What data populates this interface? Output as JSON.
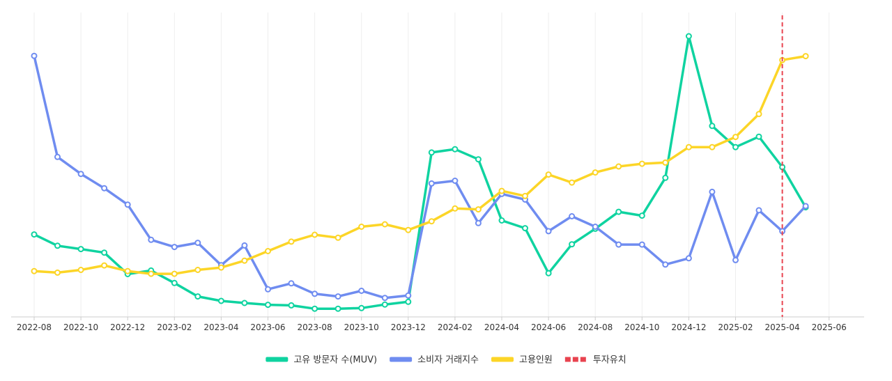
{
  "chart_data": {
    "type": "line",
    "title": "",
    "xlabel": "",
    "ylabel": "",
    "x_tick_labels": [
      "2022-08",
      "2022-10",
      "2022-12",
      "2023-02",
      "2023-04",
      "2023-06",
      "2023-08",
      "2023-10",
      "2023-12",
      "2024-02",
      "2024-04",
      "2024-06",
      "2024-08",
      "2024-10",
      "2024-12",
      "2025-02",
      "2025-04",
      "2025-06"
    ],
    "x_months": [
      "2022-08",
      "2022-09",
      "2022-10",
      "2022-11",
      "2022-12",
      "2023-01",
      "2023-02",
      "2023-03",
      "2023-04",
      "2023-05",
      "2023-06",
      "2023-07",
      "2023-08",
      "2023-09",
      "2023-10",
      "2023-11",
      "2023-12",
      "2024-01",
      "2024-02",
      "2024-03",
      "2024-04",
      "2024-05",
      "2024-06",
      "2024-07",
      "2024-08",
      "2024-09",
      "2024-10",
      "2024-11",
      "2024-12",
      "2025-01",
      "2025-02",
      "2025-03",
      "2025-04",
      "2025-05"
    ],
    "ylim": [
      0,
      100
    ],
    "y_axis_labels_shown": false,
    "grid": "vertical",
    "legend_position": "bottom",
    "series": [
      {
        "name": "고유 방문자 수(MUV)",
        "color": "#0fd3a0",
        "values": [
          26.5,
          22.7,
          21.6,
          20.4,
          13.2,
          14.4,
          10.2,
          5.7,
          4.2,
          3.5,
          2.9,
          2.7,
          1.6,
          1.6,
          1.8,
          3.0,
          3.9,
          54.0,
          55.1,
          51.7,
          31.2,
          28.6,
          13.5,
          23.2,
          28.4,
          34.1,
          32.8,
          45.5,
          93.0,
          62.9,
          55.8,
          59.3,
          49.1,
          35.6
        ]
      },
      {
        "name": "소비자 거래지수",
        "color": "#6f8cf0",
        "values": [
          86.4,
          52.5,
          46.8,
          42.0,
          36.5,
          24.7,
          22.3,
          23.7,
          16.2,
          22.8,
          8.1,
          10.1,
          6.6,
          5.7,
          7.6,
          5.2,
          6.0,
          43.6,
          44.5,
          30.3,
          40.1,
          38.2,
          27.6,
          32.6,
          29.1,
          23.1,
          23.1,
          16.4,
          18.5,
          40.8,
          17.9,
          34.6,
          27.6,
          36.0
        ]
      },
      {
        "name": "고용인원",
        "color": "#fcd527",
        "values": [
          14.2,
          13.7,
          14.6,
          16.1,
          14.2,
          13.3,
          13.3,
          14.6,
          15.4,
          17.7,
          20.9,
          24.1,
          26.4,
          25.4,
          29.1,
          29.9,
          28.0,
          30.9,
          35.2,
          34.9,
          41.1,
          39.4,
          46.6,
          43.9,
          47.3,
          49.3,
          50.2,
          50.6,
          55.8,
          55.8,
          59.2,
          66.9,
          85.0,
          86.3
        ]
      }
    ],
    "annotations": [
      {
        "type": "vline",
        "x": "2025-04",
        "label": "투자유치",
        "color": "#e8434f",
        "style": "dashed"
      }
    ]
  },
  "legend": {
    "items": [
      {
        "label": "고유 방문자 수(MUV)",
        "color": "#0fd3a0",
        "style": "solid"
      },
      {
        "label": "소비자 거래지수",
        "color": "#6f8cf0",
        "style": "solid"
      },
      {
        "label": "고용인원",
        "color": "#fcd527",
        "style": "solid"
      },
      {
        "label": "투자유치",
        "color": "#e8434f",
        "style": "dashed"
      }
    ]
  }
}
